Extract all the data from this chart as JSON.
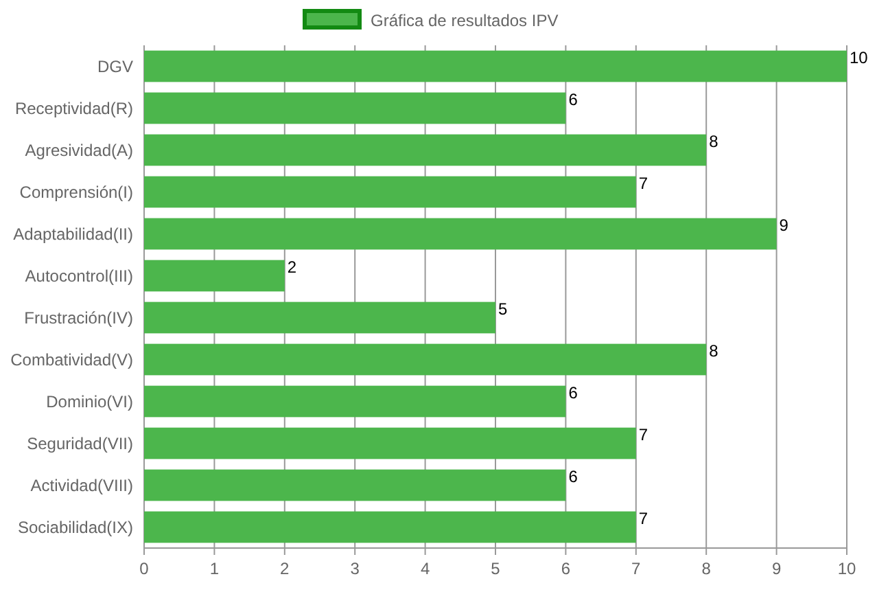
{
  "chart_data": {
    "type": "bar",
    "orientation": "horizontal",
    "categories": [
      "DGV",
      "Receptividad(R)",
      "Agresividad(A)",
      "Comprensión(I)",
      "Adaptabilidad(II)",
      "Autocontrol(III)",
      "Frustración(IV)",
      "Combatividad(V)",
      "Dominio(VI)",
      "Seguridad(VII)",
      "Actividad(VIII)",
      "Sociabilidad(IX)"
    ],
    "series": [
      {
        "name": "Gráfica de resultados IPV",
        "color": "#4cb64c",
        "values": [
          10,
          6,
          8,
          7,
          9,
          2,
          5,
          8,
          6,
          7,
          6,
          7
        ]
      }
    ],
    "xlim": [
      0,
      10
    ],
    "xticks": [
      0,
      1,
      2,
      3,
      4,
      5,
      6,
      7,
      8,
      9,
      10
    ],
    "grid": "x",
    "legend": "top",
    "data_labels": true
  }
}
